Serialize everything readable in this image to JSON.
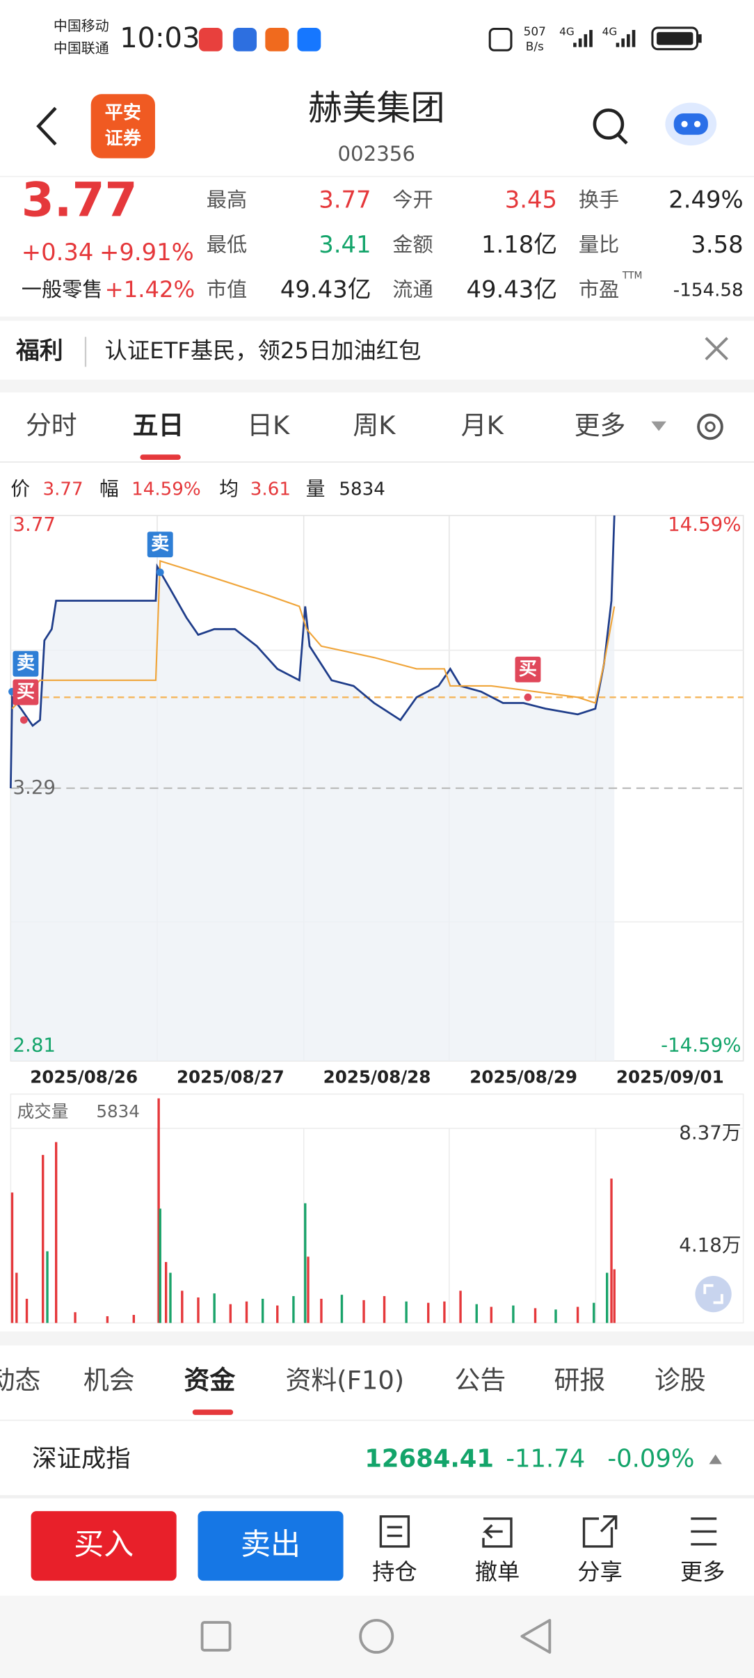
{
  "status_bar": {
    "carrier_1": "中国移动",
    "carrier_2": "中国联通",
    "time": "10:03",
    "net_speed": "507",
    "net_unit": "B/s",
    "signal_1": "4G",
    "signal_2": "4G"
  },
  "header": {
    "broker_logo": [
      "平安",
      "证券"
    ],
    "title": "赫美集团",
    "code": "002356"
  },
  "quote": {
    "price": "3.77",
    "change": "+0.34",
    "change_pct": "+9.91%",
    "sector": "一般零售",
    "sector_pct": "+1.42%",
    "stats": [
      {
        "label": "最高",
        "value": "3.77"
      },
      {
        "label": "今开",
        "value": "3.45"
      },
      {
        "label": "换手",
        "value": "2.49%"
      },
      {
        "label": "最低",
        "value": "3.41"
      },
      {
        "label": "金额",
        "value": "1.18亿"
      },
      {
        "label": "量比",
        "value": "3.58"
      },
      {
        "label": "市值",
        "value": "49.43亿"
      },
      {
        "label": "流通",
        "value": "49.43亿"
      },
      {
        "label": "市盈",
        "value": "-154.58"
      }
    ],
    "pe_suffix": "TTM"
  },
  "banner": {
    "tag": "福利",
    "text": "认证ETF基民，领25日加油红包"
  },
  "period_tabs": [
    "分时",
    "五日",
    "日K",
    "周K",
    "月K",
    "更多"
  ],
  "chart_info": [
    {
      "label": "价",
      "value": "3.77"
    },
    {
      "label": "幅",
      "value": "14.59%"
    },
    {
      "label": "均",
      "value": "3.61"
    },
    {
      "label": "量",
      "value": "5834"
    }
  ],
  "chart_data": [
    {
      "type": "line",
      "xlim": [
        0,
        5
      ],
      "xticks": [
        {
          "value": 0.5,
          "label": "2025/08/26"
        },
        {
          "value": 1.5,
          "label": "2025/08/27"
        },
        {
          "value": 2.5,
          "label": "2025/08/28"
        },
        {
          "value": 3.5,
          "label": "2025/08/29"
        },
        {
          "value": 4.5,
          "label": "2025/09/01"
        }
      ],
      "ylim": [
        2.81,
        3.77
      ],
      "yticks": [
        3.77,
        3.29,
        2.81
      ],
      "y2lim": [
        -14.59,
        14.59
      ],
      "y2ticks": [
        {
          "value": 14.59,
          "label": "14.59%"
        },
        {
          "value": -14.59,
          "label": "-14.59%"
        }
      ],
      "reference_line": {
        "value": 3.45,
        "color": "#f5b55a"
      },
      "series": [
        {
          "color": "#1f3d8a",
          "x": [
            0,
            0.01,
            0.07,
            0.15,
            0.2,
            0.23,
            0.28,
            0.31,
            0.99,
            1.0,
            1.09,
            1.2,
            1.28,
            1.39,
            1.53,
            1.68,
            1.82,
            1.97,
            2.01,
            2.04,
            2.19,
            2.34,
            2.48,
            2.66,
            2.77,
            2.92,
            3.0,
            3.07,
            3.21,
            3.36,
            3.5,
            3.65,
            3.87,
            3.99,
            4.05,
            4.1,
            4.12
          ],
          "values": [
            3.29,
            3.45,
            3.43,
            3.4,
            3.41,
            3.55,
            3.57,
            3.62,
            3.62,
            3.68,
            3.64,
            3.59,
            3.56,
            3.57,
            3.57,
            3.54,
            3.5,
            3.48,
            3.61,
            3.54,
            3.48,
            3.47,
            3.44,
            3.41,
            3.45,
            3.47,
            3.5,
            3.47,
            3.46,
            3.44,
            3.44,
            3.43,
            3.42,
            3.43,
            3.51,
            3.62,
            3.77
          ]
        },
        {
          "color": "#f0a53a",
          "x": [
            0.01,
            0.2,
            0.99,
            1.02,
            1.39,
            1.75,
            1.97,
            2.02,
            2.12,
            2.48,
            2.77,
            2.96,
            3.0,
            3.28,
            3.58,
            3.87,
            3.99,
            4.05,
            4.12
          ],
          "values": [
            3.43,
            3.48,
            3.48,
            3.69,
            3.66,
            3.63,
            3.61,
            3.57,
            3.54,
            3.52,
            3.5,
            3.5,
            3.47,
            3.47,
            3.46,
            3.45,
            3.44,
            3.51,
            3.61
          ]
        }
      ],
      "annotations": [
        {
          "label": "卖",
          "x": 0.01,
          "y": 3.46,
          "color": "#2f7fd6"
        },
        {
          "label": "买",
          "x": 0.09,
          "y": 3.41,
          "color": "#e0475a"
        },
        {
          "label": "卖",
          "x": 1.02,
          "y": 3.67,
          "color": "#2f7fd6"
        },
        {
          "label": "买",
          "x": 3.53,
          "y": 3.45,
          "color": "#e0475a"
        }
      ]
    },
    {
      "type": "bar",
      "title": "成交量",
      "current": "5834",
      "xlim": [
        0,
        5
      ],
      "ylim": [
        0,
        83700
      ],
      "yticks": [
        {
          "value": 83700,
          "label": "8.37万"
        },
        {
          "value": 41800,
          "label": "4.18万"
        }
      ],
      "series": [
        {
          "color": "#e5383b",
          "x": [
            0.01,
            0.04,
            0.11,
            0.22,
            0.31,
            0.44,
            0.66,
            0.84,
            1.01,
            1.06,
            1.17,
            1.28,
            1.5,
            1.61,
            1.82,
            2.03,
            2.12,
            2.41,
            2.55,
            2.85,
            2.96,
            3.07,
            3.28,
            3.58,
            3.87,
            4.1,
            4.12
          ],
          "values": [
            48600,
            18700,
            9000,
            62600,
            67400,
            4000,
            2500,
            3000,
            83700,
            22700,
            12000,
            9500,
            7000,
            8000,
            6500,
            24700,
            9000,
            8500,
            10000,
            7500,
            8000,
            12000,
            6000,
            5500,
            6000,
            53800,
            20000
          ]
        },
        {
          "color": "#1aa36a",
          "x": [
            0.25,
            1.02,
            1.09,
            1.39,
            1.72,
            1.93,
            2.01,
            2.26,
            2.7,
            3.18,
            3.43,
            3.72,
            3.98,
            4.07
          ],
          "values": [
            26700,
            42600,
            18700,
            11000,
            9000,
            10000,
            44600,
            10500,
            8000,
            7000,
            6500,
            5000,
            7500,
            18700
          ]
        }
      ]
    }
  ],
  "section_tabs": [
    "动态",
    "机会",
    "资金",
    "资料(F10)",
    "公告",
    "研报",
    "诊股"
  ],
  "index": {
    "name": "深证成指",
    "value": "12684.41",
    "change": "-11.74",
    "change_pct": "-0.09%"
  },
  "actions": {
    "buy": "买入",
    "sell": "卖出",
    "tools": [
      "持仓",
      "撤单",
      "分享",
      "更多"
    ]
  }
}
